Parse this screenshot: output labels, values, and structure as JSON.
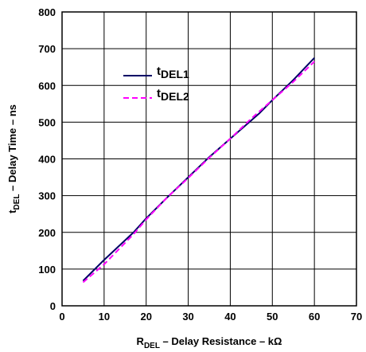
{
  "chart_data": {
    "type": "line",
    "xlabel": {
      "main": "R",
      "sub": "DEL",
      "rest": " – Delay Resistance – kΩ"
    },
    "ylabel": {
      "main": "t",
      "sub": "DEL",
      "rest": " – Delay Time – ns"
    },
    "xlim": [
      0,
      70
    ],
    "ylim": [
      0,
      800
    ],
    "x_ticks": [
      0,
      10,
      20,
      30,
      40,
      50,
      60,
      70
    ],
    "y_ticks": [
      0,
      100,
      200,
      300,
      400,
      500,
      600,
      700,
      800
    ],
    "grid": true,
    "legend_position": "upper-left",
    "series": [
      {
        "name": {
          "main": "t",
          "sub": "DEL1"
        },
        "color": "#000066",
        "dash": "solid",
        "x": [
          5,
          10,
          17,
          20,
          25,
          30,
          35,
          40,
          45,
          47,
          50,
          55,
          60
        ],
        "y": [
          68,
          125,
          200,
          238,
          295,
          350,
          405,
          455,
          505,
          525,
          560,
          615,
          675
        ]
      },
      {
        "name": {
          "main": "t",
          "sub": "DEL2"
        },
        "color": "#ff00ff",
        "dash": "dashed",
        "x": [
          5,
          10,
          17,
          20,
          25,
          30,
          35,
          40,
          45,
          50,
          55,
          60
        ],
        "y": [
          64,
          113,
          195,
          235,
          295,
          348,
          403,
          455,
          510,
          560,
          610,
          665
        ]
      }
    ]
  }
}
